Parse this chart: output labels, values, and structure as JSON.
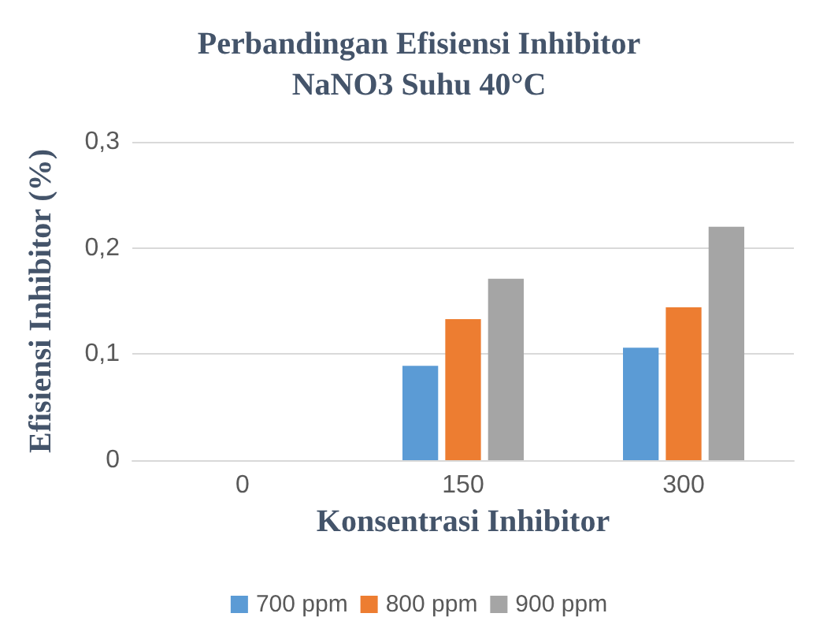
{
  "chart_data": {
    "type": "bar",
    "title": "Perbandingan Efisiensi Inhibitor\nNaNO3 Suhu 40°C",
    "xlabel": "Konsentrasi Inhibitor",
    "ylabel": "Efisiensi Inhibitor (%)",
    "categories": [
      "0",
      "150",
      "300"
    ],
    "series": [
      {
        "name": "700 ppm",
        "color": "#5b9bd5",
        "values": [
          0,
          0.089,
          0.106
        ]
      },
      {
        "name": "800 ppm",
        "color": "#ed7d31",
        "values": [
          0,
          0.133,
          0.144
        ]
      },
      {
        "name": "900 ppm",
        "color": "#a5a5a5",
        "values": [
          0,
          0.171,
          0.22
        ]
      }
    ],
    "ylim": [
      0,
      0.3
    ],
    "yticks": [
      {
        "value": 0,
        "label": "0"
      },
      {
        "value": 0.1,
        "label": "0,1"
      },
      {
        "value": 0.2,
        "label": "0,2"
      },
      {
        "value": 0.3,
        "label": "0,3"
      }
    ],
    "grid": "y",
    "legend": "bottom"
  }
}
